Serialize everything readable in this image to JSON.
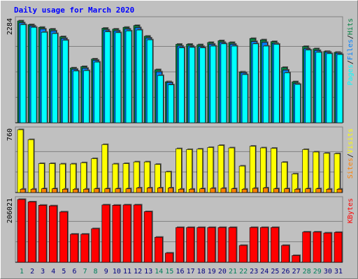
{
  "window": {
    "title": "Daily usage for March 2020"
  },
  "colors": {
    "pages": "#00ffff",
    "files": "#0080ff",
    "hits": "#008040",
    "visits": "#ffff00",
    "sites": "#ff8000",
    "kbytes": "#ff0000",
    "weekday_label": "#000080",
    "weekend_label": "#00805c"
  },
  "chart_data": [
    {
      "type": "bar",
      "title": "Daily usage for March 2020",
      "ylabel_parts": [
        "Pages",
        "/",
        "Files",
        "/",
        "Hits"
      ],
      "ytick_max_label": "2284",
      "ylim": [
        0,
        2284
      ],
      "categories": [
        "1",
        "2",
        "3",
        "4",
        "5",
        "6",
        "7",
        "8",
        "9",
        "10",
        "11",
        "12",
        "13",
        "14",
        "15",
        "16",
        "17",
        "18",
        "19",
        "20",
        "21",
        "22",
        "23",
        "24",
        "25",
        "26",
        "27",
        "28",
        "29",
        "30",
        "31"
      ],
      "weekend_days": [
        "1",
        "7",
        "8",
        "14",
        "15",
        "21",
        "22",
        "28",
        "29"
      ],
      "series": [
        {
          "name": "Hits",
          "values": [
            2284,
            2200,
            2140,
            2100,
            1930,
            1230,
            1260,
            1430,
            2120,
            2100,
            2140,
            2180,
            1940,
            1190,
            920,
            1760,
            1760,
            1750,
            1800,
            1840,
            1800,
            1140,
            1890,
            1860,
            1820,
            1240,
            920,
            1710,
            1660,
            1600,
            1580
          ]
        },
        {
          "name": "Files",
          "values": [
            2240,
            2170,
            2100,
            2060,
            1890,
            1200,
            1220,
            1400,
            2080,
            2060,
            2100,
            2130,
            1900,
            1140,
            900,
            1720,
            1720,
            1710,
            1760,
            1800,
            1760,
            1120,
            1820,
            1800,
            1780,
            1180,
            880,
            1660,
            1620,
            1580,
            1560
          ]
        },
        {
          "name": "Pages",
          "values": [
            2200,
            2140,
            2030,
            2000,
            1850,
            1160,
            1170,
            1360,
            2040,
            2020,
            2060,
            2080,
            1860,
            1060,
            850,
            1680,
            1690,
            1680,
            1720,
            1770,
            1720,
            1080,
            1770,
            1720,
            1760,
            1120,
            860,
            1630,
            1580,
            1550,
            1530
          ]
        }
      ]
    },
    {
      "type": "bar",
      "ylabel_parts": [
        "Sites",
        "/",
        "Visits"
      ],
      "ytick_max_label": "760",
      "ylim": [
        0,
        760
      ],
      "categories": [
        "1",
        "2",
        "3",
        "4",
        "5",
        "6",
        "7",
        "8",
        "9",
        "10",
        "11",
        "12",
        "13",
        "14",
        "15",
        "16",
        "17",
        "18",
        "19",
        "20",
        "21",
        "22",
        "23",
        "24",
        "25",
        "26",
        "27",
        "28",
        "29",
        "30",
        "31"
      ],
      "series": [
        {
          "name": "Visits",
          "values": [
            760,
            640,
            350,
            350,
            345,
            345,
            360,
            410,
            580,
            345,
            350,
            370,
            370,
            340,
            250,
            530,
            520,
            525,
            545,
            570,
            540,
            320,
            560,
            540,
            535,
            365,
            225,
            520,
            490,
            475,
            470
          ]
        },
        {
          "name": "Sites",
          "values": [
            40,
            40,
            45,
            45,
            40,
            40,
            40,
            45,
            45,
            45,
            45,
            55,
            55,
            55,
            55,
            40,
            40,
            45,
            50,
            50,
            45,
            40,
            50,
            55,
            45,
            45,
            40,
            45,
            45,
            40,
            40
          ]
        }
      ]
    },
    {
      "type": "bar",
      "ylabel_parts": [
        "KBytes"
      ],
      "ytick_max_label": "206021",
      "ylim": [
        0,
        206021
      ],
      "categories": [
        "1",
        "2",
        "3",
        "4",
        "5",
        "6",
        "7",
        "8",
        "9",
        "10",
        "11",
        "12",
        "13",
        "14",
        "15",
        "16",
        "17",
        "18",
        "19",
        "20",
        "21",
        "22",
        "23",
        "24",
        "25",
        "26",
        "27",
        "28",
        "29",
        "30",
        "31"
      ],
      "series": [
        {
          "name": "KBytes",
          "values": [
            206021,
            198000,
            187000,
            185000,
            165000,
            92000,
            92000,
            110000,
            188000,
            187000,
            188000,
            188000,
            166000,
            82000,
            30000,
            114000,
            114000,
            114000,
            114000,
            114000,
            114000,
            55000,
            114000,
            114000,
            114000,
            55000,
            22000,
            99000,
            99000,
            96000,
            98000
          ]
        }
      ]
    }
  ]
}
